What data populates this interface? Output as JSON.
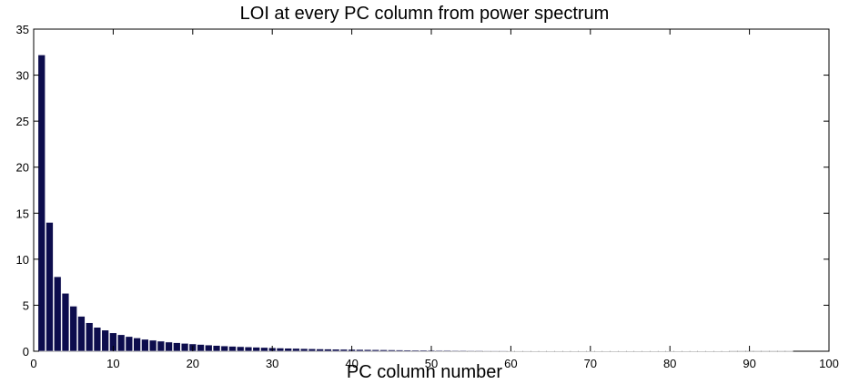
{
  "chart_data": {
    "type": "bar",
    "title": "LOI at every PC column from power spectrum",
    "xlabel": "PC column number",
    "ylabel": "",
    "xlim": [
      0,
      100
    ],
    "ylim": [
      0,
      35
    ],
    "xticks": [
      0,
      10,
      20,
      30,
      40,
      50,
      60,
      70,
      80,
      90,
      100
    ],
    "yticks": [
      0,
      5,
      10,
      15,
      20,
      25,
      30,
      35
    ],
    "bar_color": "#0d0d4d",
    "grid": false,
    "x": [
      1,
      2,
      3,
      4,
      5,
      6,
      7,
      8,
      9,
      10,
      11,
      12,
      13,
      14,
      15,
      16,
      17,
      18,
      19,
      20,
      21,
      22,
      23,
      24,
      25,
      26,
      27,
      28,
      29,
      30,
      31,
      32,
      33,
      34,
      35,
      36,
      37,
      38,
      39,
      40,
      41,
      42,
      43,
      44,
      45,
      46,
      47,
      48,
      49,
      50,
      51,
      52,
      53,
      54,
      55,
      56,
      57,
      58,
      59,
      60,
      61,
      62,
      63,
      64,
      65,
      66,
      67,
      68,
      69,
      70,
      71,
      72,
      73,
      74,
      75,
      76,
      77,
      78,
      79,
      80,
      81,
      82,
      83,
      84,
      85,
      86,
      87,
      88,
      89,
      90,
      91,
      92,
      93,
      94,
      95
    ],
    "values": [
      32.2,
      14.0,
      8.1,
      6.3,
      4.9,
      3.8,
      3.1,
      2.6,
      2.3,
      2.0,
      1.8,
      1.6,
      1.45,
      1.3,
      1.2,
      1.1,
      1.0,
      0.93,
      0.86,
      0.8,
      0.74,
      0.68,
      0.63,
      0.58,
      0.54,
      0.5,
      0.47,
      0.44,
      0.41,
      0.38,
      0.35,
      0.33,
      0.31,
      0.29,
      0.27,
      0.25,
      0.24,
      0.22,
      0.21,
      0.2,
      0.19,
      0.18,
      0.17,
      0.16,
      0.15,
      0.14,
      0.13,
      0.12,
      0.12,
      0.11,
      0.1,
      0.1,
      0.09,
      0.09,
      0.08,
      0.08,
      0.07,
      0.07,
      0.07,
      0.06,
      0.06,
      0.06,
      0.05,
      0.05,
      0.05,
      0.05,
      0.04,
      0.04,
      0.04,
      0.04,
      0.04,
      0.03,
      0.03,
      0.03,
      0.03,
      0.03,
      0.03,
      0.02,
      0.02,
      0.02,
      0.02,
      0.02,
      0.02,
      0.02,
      0.02,
      0.02,
      0.02,
      0.01,
      0.01,
      0.01,
      0.01,
      0.01,
      0.01,
      0.01,
      0.01
    ]
  }
}
